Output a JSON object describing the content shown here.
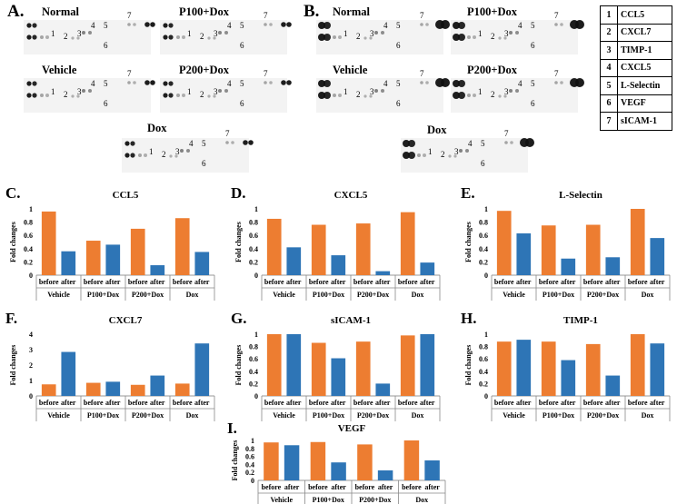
{
  "panels": {
    "A": {
      "letter": "A.",
      "titles": [
        "Normal",
        "P100+Dox",
        "Vehicle",
        "P200+Dox",
        "Dox"
      ]
    },
    "B": {
      "letter": "B.",
      "titles": [
        "Normal",
        "P100+Dox",
        "Vehicle",
        "P200+Dox",
        "Dox"
      ]
    }
  },
  "spot_labels": [
    "1",
    "2",
    "3",
    "4",
    "5",
    "6",
    "7"
  ],
  "legend": {
    "rows": [
      {
        "num": "1",
        "name": "CCL5"
      },
      {
        "num": "2",
        "name": "CXCL7"
      },
      {
        "num": "3",
        "name": "TIMP-1"
      },
      {
        "num": "4",
        "name": "CXCL5"
      },
      {
        "num": "5",
        "name": "L-Selectin"
      },
      {
        "num": "6",
        "name": "VEGF"
      },
      {
        "num": "7",
        "name": "sICAM-1"
      }
    ]
  },
  "colors": {
    "before": "#ED7D31",
    "after": "#2E75B6"
  },
  "chart_data": [
    {
      "type": "bar",
      "letter": "C.",
      "title": "CCL5",
      "ylabel": "Fold changes",
      "ylim": [
        0,
        1
      ],
      "yticks": [
        "0",
        "0.2",
        "0.4",
        "0.6",
        "0.8",
        "1"
      ],
      "categories": [
        "Vehicle",
        "P100+Dox",
        "P200+Dox",
        "Dox"
      ],
      "sublabels": [
        "before",
        "after"
      ],
      "series": [
        {
          "name": "before",
          "values": [
            0.96,
            0.52,
            0.7,
            0.86
          ]
        },
        {
          "name": "after",
          "values": [
            0.36,
            0.46,
            0.15,
            0.35
          ]
        }
      ]
    },
    {
      "type": "bar",
      "letter": "D.",
      "title": "CXCL5",
      "ylabel": "Fold changes",
      "ylim": [
        0,
        1
      ],
      "yticks": [
        "0",
        "0.2",
        "0.4",
        "0.6",
        "0.8",
        "1"
      ],
      "categories": [
        "Vehicle",
        "P100+Dox",
        "P200+Dox",
        "Dox"
      ],
      "sublabels": [
        "before",
        "after"
      ],
      "series": [
        {
          "name": "before",
          "values": [
            0.85,
            0.76,
            0.78,
            0.95
          ]
        },
        {
          "name": "after",
          "values": [
            0.42,
            0.3,
            0.06,
            0.19
          ]
        }
      ]
    },
    {
      "type": "bar",
      "letter": "E.",
      "title": "L-Selectin",
      "ylabel": "Fold changes",
      "ylim": [
        0,
        1
      ],
      "yticks": [
        "0",
        "0.2",
        "0.4",
        "0.6",
        "0.8",
        "1"
      ],
      "categories": [
        "Vehicle",
        "P100+Dox",
        "P200+Dox",
        "Dox"
      ],
      "sublabels": [
        "before",
        "after"
      ],
      "series": [
        {
          "name": "before",
          "values": [
            0.97,
            0.75,
            0.76,
            1.0
          ]
        },
        {
          "name": "after",
          "values": [
            0.63,
            0.25,
            0.27,
            0.56
          ]
        }
      ]
    },
    {
      "type": "bar",
      "letter": "F.",
      "title": "CXCL7",
      "ylabel": "Fold changes",
      "ylim": [
        0,
        4
      ],
      "yticks": [
        "0",
        "1",
        "2",
        "3",
        "4"
      ],
      "categories": [
        "Vehicle",
        "P100+Dox",
        "P200+Dox",
        "Dox"
      ],
      "sublabels": [
        "before",
        "after"
      ],
      "series": [
        {
          "name": "before",
          "values": [
            0.75,
            0.85,
            0.72,
            0.8
          ]
        },
        {
          "name": "after",
          "values": [
            2.85,
            0.92,
            1.32,
            3.4
          ]
        }
      ]
    },
    {
      "type": "bar",
      "letter": "G.",
      "title": "sICAM-1",
      "ylabel": "Fold changes",
      "ylim": [
        0,
        1
      ],
      "yticks": [
        "0",
        "0.2",
        "0.4",
        "0.6",
        "0.8",
        "1"
      ],
      "categories": [
        "Vehicle",
        "P100+Dox",
        "P200+Dox",
        "Dox"
      ],
      "sublabels": [
        "before",
        "after"
      ],
      "series": [
        {
          "name": "before",
          "values": [
            1.0,
            0.86,
            0.88,
            0.98
          ]
        },
        {
          "name": "after",
          "values": [
            1.0,
            0.61,
            0.2,
            1.0
          ]
        }
      ]
    },
    {
      "type": "bar",
      "letter": "H.",
      "title": "TIMP-1",
      "ylabel": "Fold changes",
      "ylim": [
        0,
        1
      ],
      "yticks": [
        "0",
        "0.2",
        "0.4",
        "0.6",
        "0.8",
        "1"
      ],
      "categories": [
        "Vehicle",
        "P100+Dox",
        "P200+Dox",
        "Dox"
      ],
      "sublabels": [
        "before",
        "after"
      ],
      "series": [
        {
          "name": "before",
          "values": [
            0.88,
            0.88,
            0.84,
            1.0
          ]
        },
        {
          "name": "after",
          "values": [
            0.91,
            0.58,
            0.33,
            0.85
          ]
        }
      ]
    },
    {
      "type": "bar",
      "letter": "I.",
      "title": "VEGF",
      "ylabel": "Fold changes",
      "ylim": [
        0,
        1
      ],
      "yticks": [
        "0",
        "0.2",
        "0.4",
        "0.6",
        "0.8",
        "1"
      ],
      "categories": [
        "Vehicle",
        "P100+Dox",
        "P200+Dox",
        "Dox"
      ],
      "sublabels": [
        "before",
        "after"
      ],
      "series": [
        {
          "name": "before",
          "values": [
            0.95,
            0.96,
            0.9,
            1.0
          ]
        },
        {
          "name": "after",
          "values": [
            0.88,
            0.45,
            0.25,
            0.5
          ]
        }
      ]
    }
  ]
}
